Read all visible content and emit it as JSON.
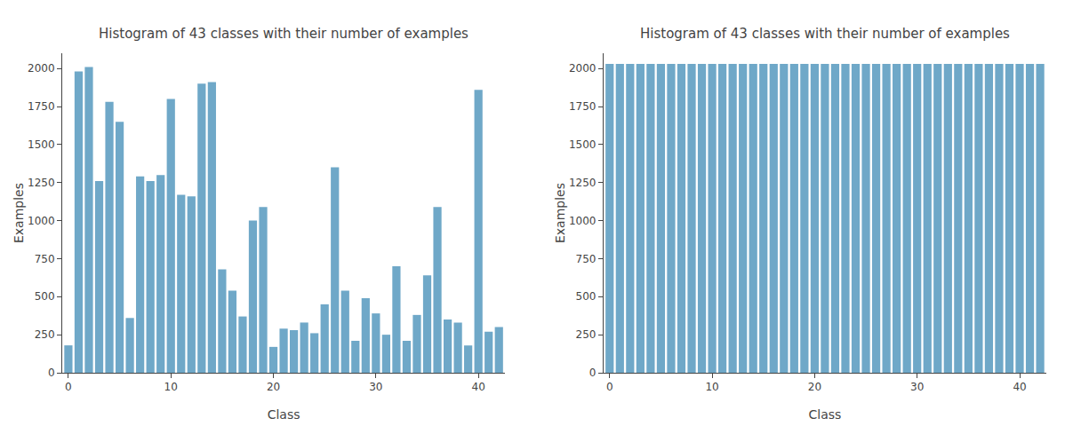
{
  "chart_data": [
    {
      "type": "bar",
      "title": "Histogram of 43 classes with their number of examples",
      "xlabel": "Class",
      "ylabel": "Examples",
      "x": [
        0,
        1,
        2,
        3,
        4,
        5,
        6,
        7,
        8,
        9,
        10,
        11,
        12,
        13,
        14,
        15,
        16,
        17,
        18,
        19,
        20,
        21,
        22,
        23,
        24,
        25,
        26,
        27,
        28,
        29,
        30,
        31,
        32,
        33,
        34,
        35,
        36,
        37,
        38,
        39,
        40,
        41,
        42
      ],
      "values": [
        180,
        1980,
        2010,
        1260,
        1780,
        1650,
        360,
        1290,
        1260,
        1300,
        1800,
        1170,
        1160,
        1900,
        1910,
        680,
        540,
        370,
        1000,
        1090,
        170,
        290,
        280,
        330,
        260,
        450,
        1350,
        540,
        210,
        490,
        390,
        250,
        700,
        210,
        380,
        640,
        1090,
        350,
        330,
        180,
        1860,
        270,
        300
      ],
      "color": "#6fa8c8",
      "xlim": [
        -0.6,
        42.6
      ],
      "xticks": [
        0,
        10,
        20,
        30,
        40
      ],
      "ylim": [
        0,
        2100
      ],
      "yticks": [
        0,
        250,
        500,
        750,
        1000,
        1250,
        1500,
        1750,
        2000
      ],
      "grid": false
    },
    {
      "type": "bar",
      "title": "Histogram of 43 classes with their number of examples",
      "xlabel": "Class",
      "ylabel": "Examples",
      "x": [
        0,
        1,
        2,
        3,
        4,
        5,
        6,
        7,
        8,
        9,
        10,
        11,
        12,
        13,
        14,
        15,
        16,
        17,
        18,
        19,
        20,
        21,
        22,
        23,
        24,
        25,
        26,
        27,
        28,
        29,
        30,
        31,
        32,
        33,
        34,
        35,
        36,
        37,
        38,
        39,
        40,
        41,
        42
      ],
      "values": [
        2030,
        2030,
        2030,
        2030,
        2030,
        2030,
        2030,
        2030,
        2030,
        2030,
        2030,
        2030,
        2030,
        2030,
        2030,
        2030,
        2030,
        2030,
        2030,
        2030,
        2030,
        2030,
        2030,
        2030,
        2030,
        2030,
        2030,
        2030,
        2030,
        2030,
        2030,
        2030,
        2030,
        2030,
        2030,
        2030,
        2030,
        2030,
        2030,
        2030,
        2030,
        2030,
        2030
      ],
      "color": "#6fa8c8",
      "xlim": [
        -0.6,
        42.6
      ],
      "xticks": [
        0,
        10,
        20,
        30,
        40
      ],
      "ylim": [
        0,
        2100
      ],
      "yticks": [
        0,
        250,
        500,
        750,
        1000,
        1250,
        1500,
        1750,
        2000
      ],
      "grid": false
    }
  ]
}
